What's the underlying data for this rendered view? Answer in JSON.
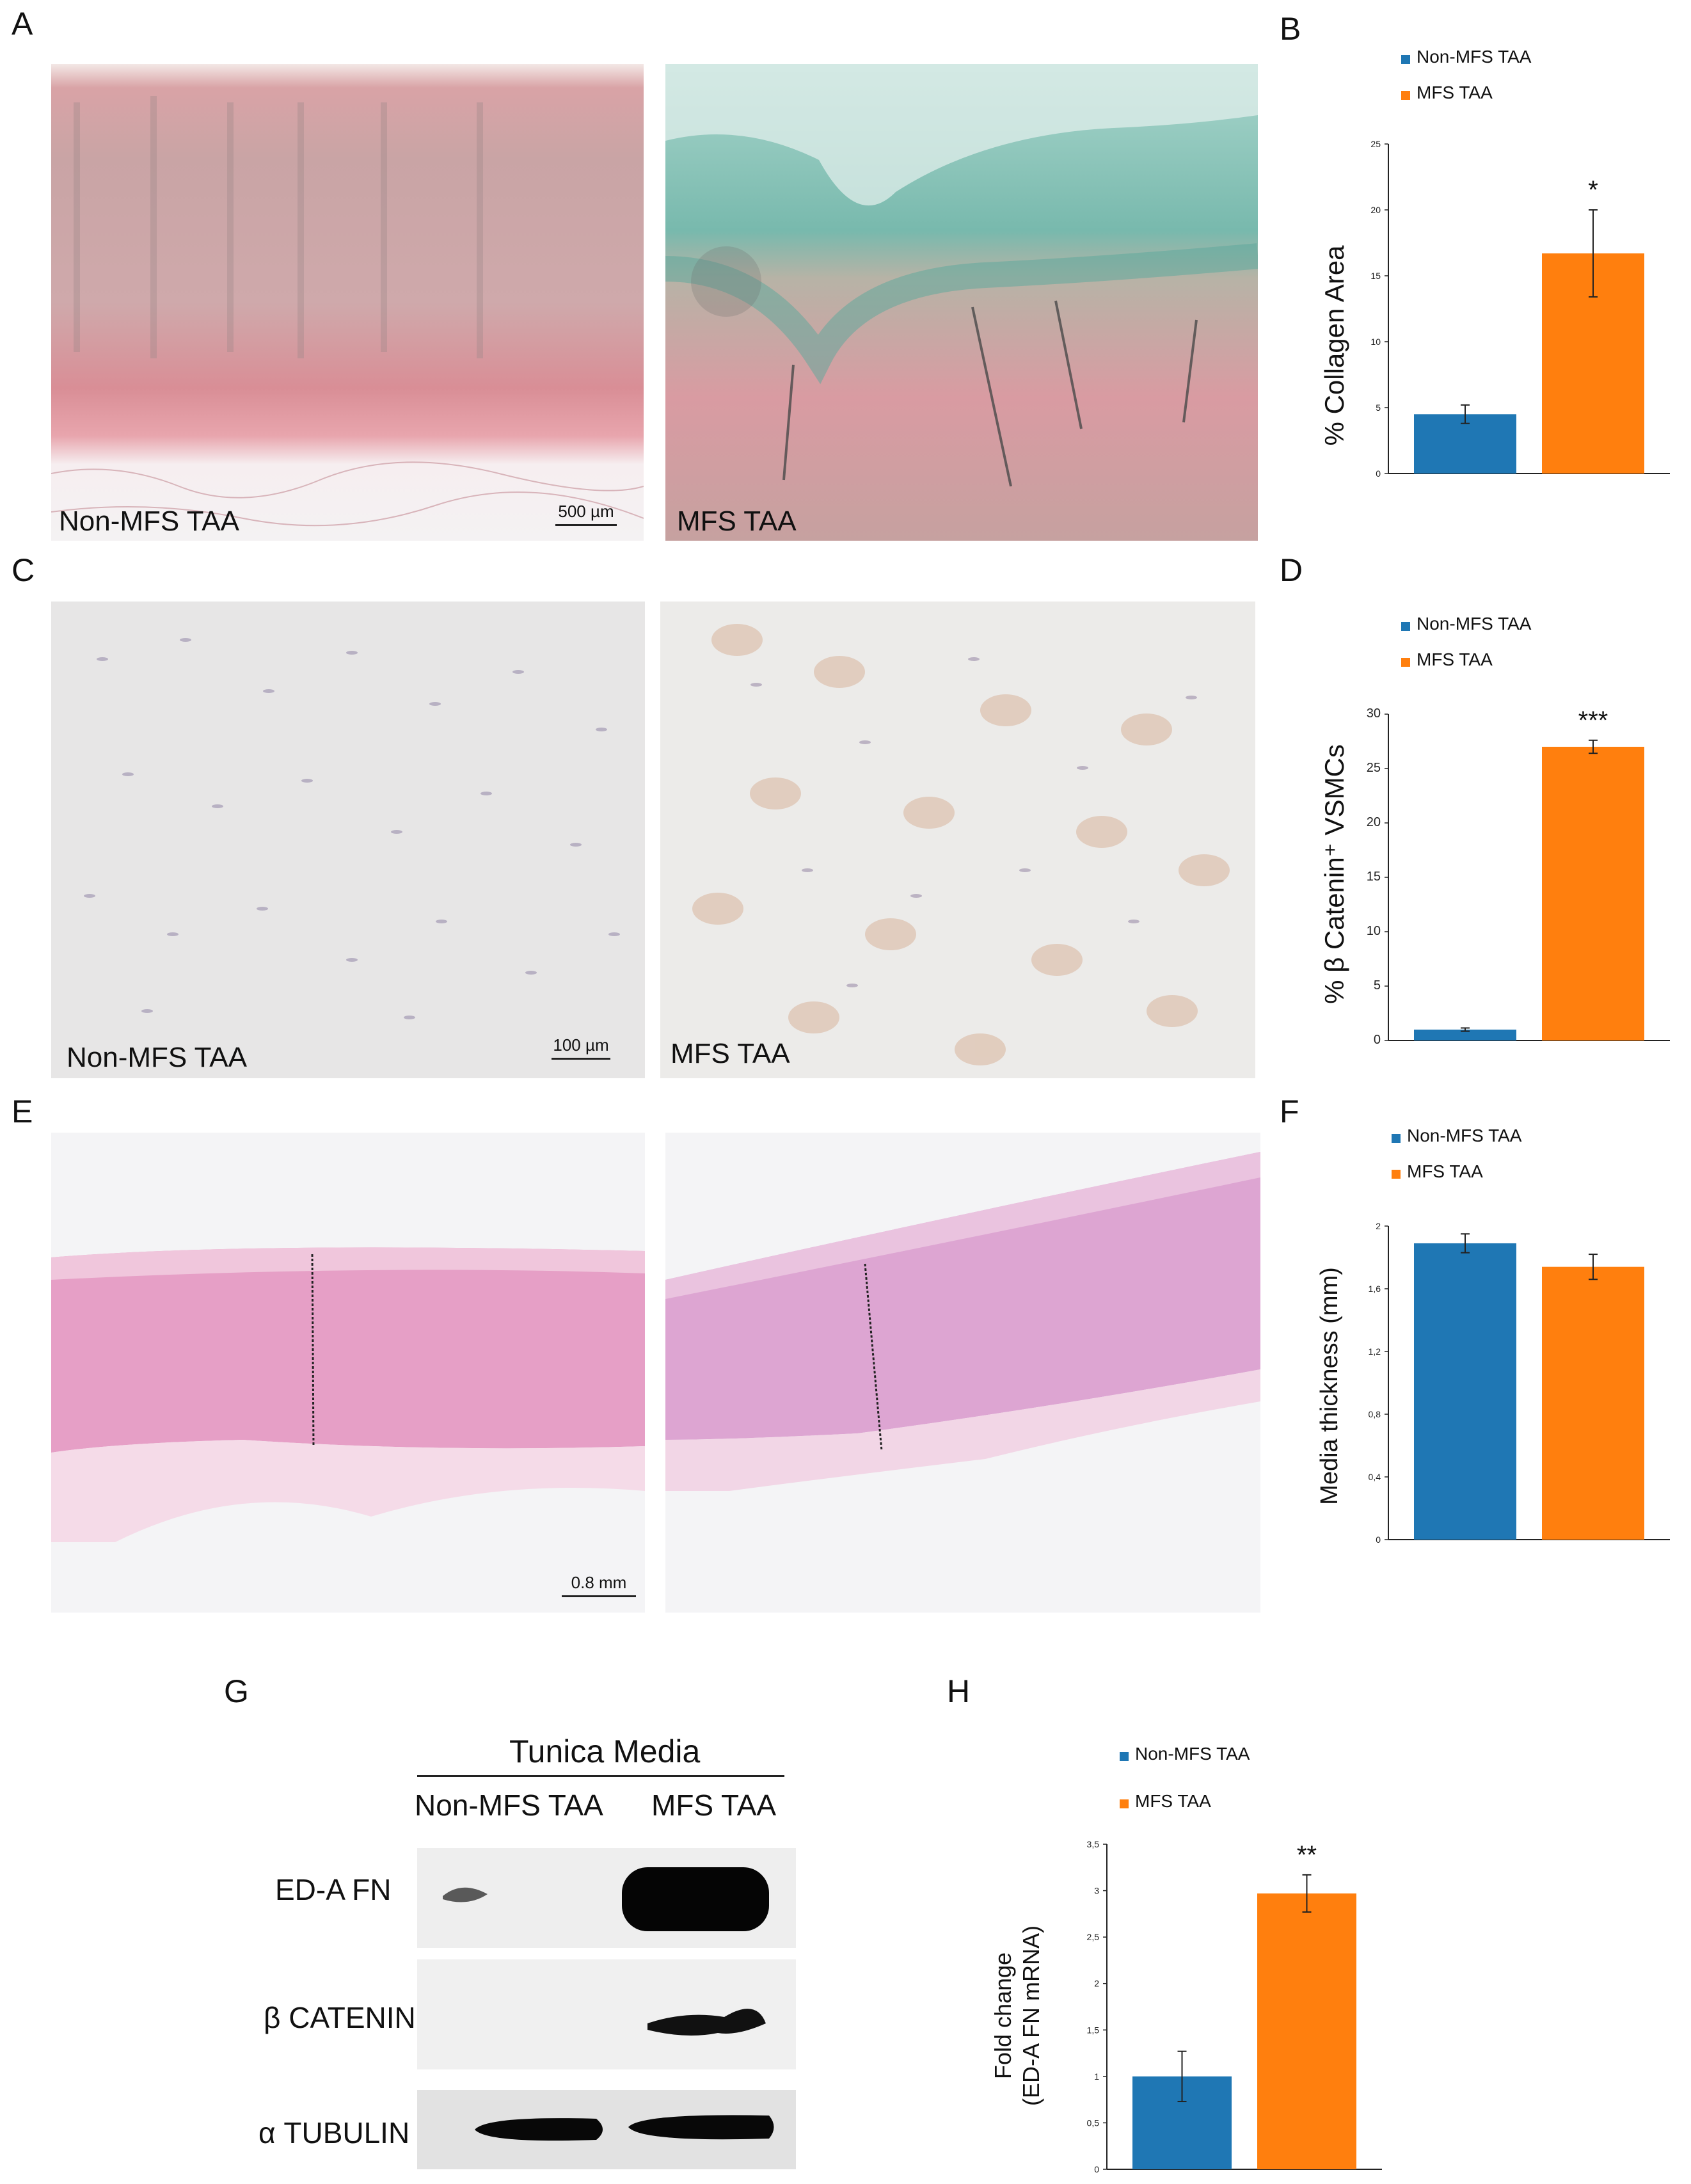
{
  "colors": {
    "non_mfs": "#1f77b4",
    "mfs": "#ff7f0e"
  },
  "panel_letters": [
    "A",
    "B",
    "C",
    "D",
    "E",
    "F",
    "G",
    "H"
  ],
  "micrographs": {
    "a_left_label": "Non-MFS TAA",
    "a_right_label": "MFS TAA",
    "a_scale": "500 µm",
    "c_left_label": "Non-MFS TAA",
    "c_right_label": "MFS TAA",
    "c_scale": "100 µm",
    "e_scale": "0.8 mm"
  },
  "western_blot": {
    "header": "Tunica Media",
    "lanes": [
      "Non-MFS TAA",
      "MFS TAA"
    ],
    "rows": [
      "ED-A FN",
      "β CATENIN",
      "α TUBULIN"
    ]
  },
  "chart_data": [
    {
      "panel": "B",
      "type": "bar",
      "categories": [
        "Non-MFS TAA",
        "MFS TAA"
      ],
      "values": [
        4.5,
        16.7
      ],
      "errors": [
        0.7,
        3.3
      ],
      "ylabel": "% Collagen Area",
      "ylim": [
        0,
        25
      ],
      "yticks": [
        "0",
        "5",
        "10",
        "15",
        "20",
        "25"
      ],
      "significance": "*",
      "legend": [
        "Non-MFS TAA",
        "MFS TAA"
      ]
    },
    {
      "panel": "D",
      "type": "bar",
      "categories": [
        "Non-MFS TAA",
        "MFS TAA"
      ],
      "values": [
        1.0,
        27.0
      ],
      "errors": [
        0.15,
        0.6
      ],
      "ylabel": "% β Catenin⁺ VSMCs",
      "ylim": [
        0,
        30
      ],
      "yticks": [
        "0",
        "5",
        "10",
        "15",
        "20",
        "25",
        "30"
      ],
      "significance": "***",
      "legend": [
        "Non-MFS TAA",
        "MFS TAA"
      ]
    },
    {
      "panel": "F",
      "type": "bar",
      "categories": [
        "Non-MFS TAA",
        "MFS TAA"
      ],
      "values": [
        1.89,
        1.74
      ],
      "errors": [
        0.06,
        0.08
      ],
      "ylabel": "Media thickness (mm)",
      "ylim": [
        0,
        2
      ],
      "yticks": [
        "0",
        "0,4",
        "0,8",
        "1,2",
        "1,6",
        "2"
      ],
      "significance": "",
      "legend": [
        "Non-MFS TAA",
        "MFS TAA"
      ]
    },
    {
      "panel": "H",
      "type": "bar",
      "categories": [
        "Non-MFS TAA",
        "MFS TAA"
      ],
      "values": [
        1.0,
        2.97
      ],
      "errors": [
        0.27,
        0.2
      ],
      "ylabel": "Fold change",
      "ylabel2": "(ED-A FN mRNA)",
      "ylim": [
        0,
        3.5
      ],
      "yticks": [
        "0",
        "0,5",
        "1",
        "1,5",
        "2",
        "2,5",
        "3",
        "3,5"
      ],
      "significance": "**",
      "legend": [
        "Non-MFS TAA",
        "MFS TAA"
      ]
    }
  ]
}
